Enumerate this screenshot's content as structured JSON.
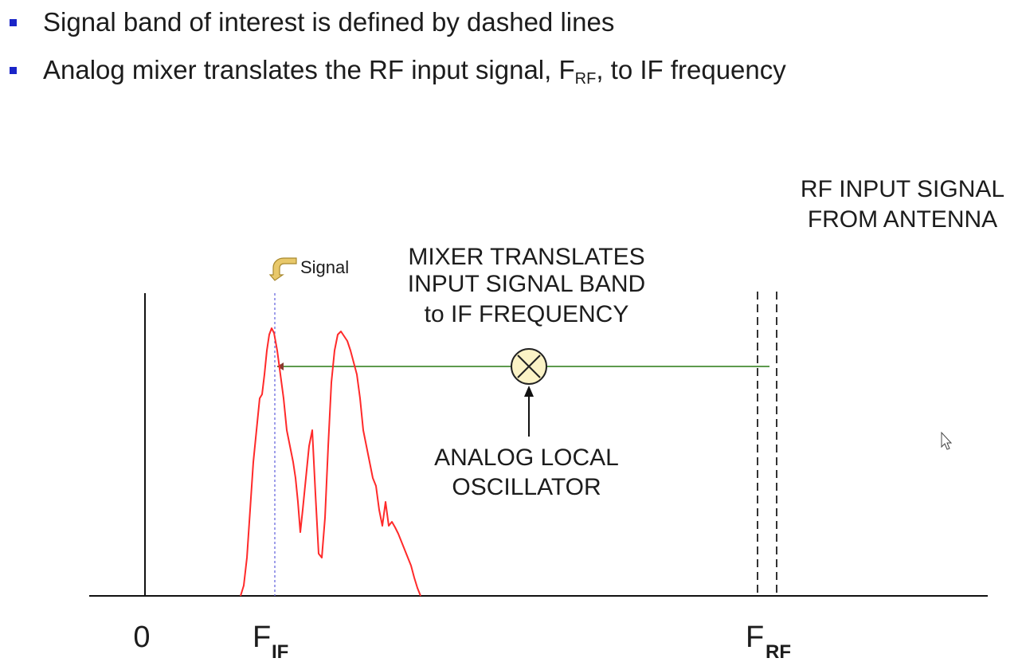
{
  "bullets": [
    {
      "text": "Signal band of interest is defined by dashed lines"
    },
    {
      "text_before": "Analog mixer translates the RF input signal, F",
      "text_sub": "RF",
      "text_after": ", to IF frequency"
    }
  ],
  "diagram": {
    "rf_input_label": [
      "RF INPUT SIGNAL",
      "FROM ANTENNA"
    ],
    "mixer_label": [
      "MIXER TRANSLATES",
      "INPUT SIGNAL BAND",
      "to IF FREQUENCY"
    ],
    "lo_label": [
      "ANALOG LOCAL",
      "OSCILLATOR"
    ],
    "signal_callout": "Signal",
    "mixer_symbol": "⊗",
    "axis_labels": {
      "zero": "0",
      "f_if_main": "F",
      "f_if_sub": "IF",
      "f_rf_main": "F",
      "f_rf_sub": "RF"
    },
    "colors": {
      "bullet": "#1a25c8",
      "spectrum": "#ff2a2a",
      "translation_line": "#5d9a4d",
      "mixer_fill": "#fbf3c6",
      "callout_arrow": "#e8c86a",
      "if_marker": "#6a6adf"
    }
  }
}
